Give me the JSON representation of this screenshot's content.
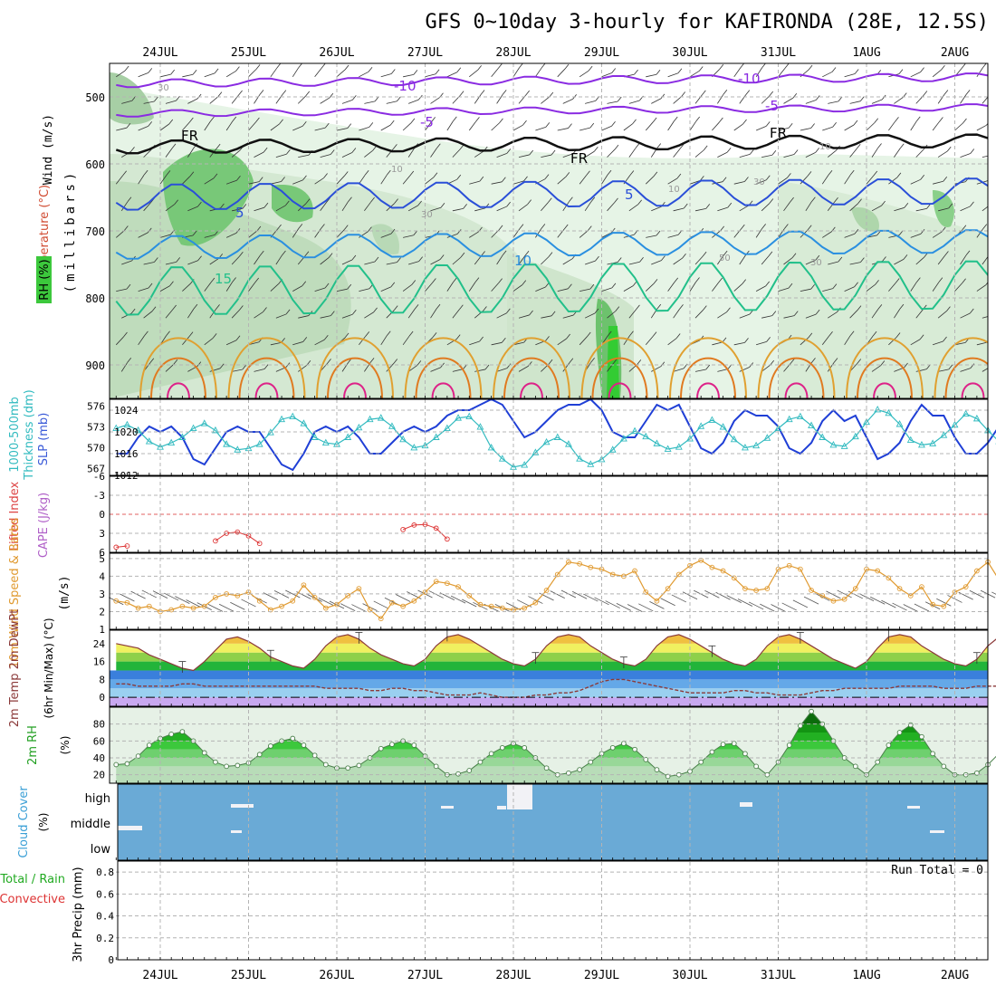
{
  "title": "GFS 0~10day 3-hourly for KAFIRONDA (28E, 12.5S)",
  "dates": [
    "24JUL",
    "25JUL",
    "26JUL",
    "27JUL",
    "28JUL",
    "29JUL",
    "30JUL",
    "31JUL",
    "1AUG",
    "2AUG"
  ],
  "run_total": "Run Total = 0",
  "colors": {
    "grid": "#b4b4b4",
    "slp": "#1f3fd6",
    "thick": "#33bbc0",
    "cape_line": "#dd3333",
    "wind": "#e09a30",
    "barb": "#555555",
    "rh_fill": "#3cc83c",
    "cloud": "#6aaad6",
    "temp_line": "#8b3a3a"
  },
  "chart_data": [
    {
      "type": "heatmap",
      "panel": "upper-air",
      "ylabel_parts": [
        "Wind (m/s)",
        "Temperature (°C)",
        "RH (%)"
      ],
      "ylabel_units": "(millibars)",
      "y_ticks": [
        500,
        600,
        700,
        800,
        900
      ],
      "ylim": [
        950,
        450
      ],
      "isotherm_labels": [
        "-10",
        "-10",
        "-5",
        "-5",
        "FR",
        "FR",
        "FR",
        "5",
        "5",
        "10",
        "15"
      ],
      "rh_labels": [
        "30",
        "10",
        "10",
        "30",
        "10",
        "30",
        "50",
        "30"
      ]
    },
    {
      "type": "line",
      "panel": "slp-thickness",
      "ylabel_left": [
        "1000-500mb",
        "Thickness (dm)"
      ],
      "ylabel_right": "SLP (mb)",
      "left_ticks": [
        "576",
        "573",
        "570",
        "567"
      ],
      "right_ticks": [
        "1024",
        "1020",
        "1016",
        "1012"
      ],
      "ylim_left": [
        566,
        577
      ],
      "ylim_right": [
        1012,
        1026
      ],
      "series": [
        {
          "values": [
            1016,
            1016,
            1019,
            1021,
            1020,
            1021,
            1019,
            1015,
            1014,
            1017,
            1020,
            1021,
            1020,
            1020,
            1017,
            1014,
            1013,
            1016,
            1020,
            1021,
            1020,
            1021,
            1019,
            1016,
            1016,
            1018,
            1020,
            1021,
            1020,
            1021,
            1023,
            1024,
            1024,
            1025,
            1026,
            1025,
            1022,
            1019,
            1020,
            1022,
            1024,
            1025,
            1025,
            1026,
            1024,
            1020,
            1019,
            1019,
            1022,
            1025,
            1024,
            1025,
            1021,
            1017,
            1016,
            1018,
            1022,
            1024,
            1023,
            1023,
            1021,
            1017,
            1016,
            1018,
            1022,
            1024,
            1022,
            1023,
            1019,
            1015,
            1016,
            1018,
            1022,
            1025,
            1023,
            1023,
            1019,
            1016,
            1016,
            1018,
            1021,
            1022
          ]
        },
        {
          "values": [
            572.8,
            573.3,
            572.5,
            570.9,
            570.1,
            570.7,
            571.5,
            572.8,
            573.5,
            572.5,
            570.5,
            569.7,
            569.9,
            570.5,
            572.2,
            574.1,
            574.5,
            573.5,
            571.5,
            570.7,
            570.5,
            571.5,
            572.9,
            574.1,
            574.3,
            573.1,
            571.2,
            570.0,
            570.3,
            571.5,
            572.8,
            574.3,
            574.5,
            573.0,
            570.0,
            568.4,
            567.2,
            567.5,
            569.3,
            570.8,
            571.5,
            570.5,
            568.4,
            567.6,
            568.3,
            569.7,
            571.3,
            572.4,
            571.6,
            570.6,
            569.8,
            570.1,
            571.3,
            573.1,
            574.0,
            573.0,
            571.2,
            570.0,
            570.3,
            571.4,
            572.8,
            574.1,
            574.5,
            573.2,
            571.5,
            570.4,
            570.2,
            571.6,
            573.7,
            575.5,
            575.0,
            573.4,
            571.1,
            570.4,
            570.6,
            571.8,
            573.3,
            574.9,
            574.2,
            572.5,
            570.9,
            571.6
          ]
        }
      ]
    },
    {
      "type": "line",
      "panel": "cape-li",
      "ylabel_left": "Lifted Index",
      "ylabel_right": "CAPE (J/kg)",
      "y_ticks": [
        "-6",
        "-3",
        "0",
        "3",
        "6"
      ],
      "ylim": [
        -6,
        6
      ],
      "series": [
        {
          "values": [
            5.2,
            5.0,
            null,
            null,
            null,
            null,
            null,
            null,
            null,
            4.2,
            3.0,
            2.8,
            3.4,
            4.6,
            null,
            null,
            null,
            null,
            null,
            null,
            null,
            null,
            null,
            null,
            null,
            null,
            2.4,
            1.7,
            1.6,
            2.2,
            3.9,
            null,
            null,
            null,
            null,
            null,
            null,
            null,
            null,
            null,
            null,
            null,
            null,
            null,
            null,
            null,
            null,
            null,
            null,
            null,
            null,
            null,
            null,
            null,
            null,
            null,
            null,
            null,
            null,
            null,
            null,
            null,
            null,
            null,
            null,
            null,
            null,
            null,
            null,
            null,
            null,
            null,
            null,
            null,
            null,
            null,
            null,
            null,
            null,
            null,
            null,
            null
          ]
        }
      ]
    },
    {
      "type": "line",
      "panel": "10m-wind",
      "ylabel": "10m Wind Speed & Barbs",
      "ylabel_units": "(m/s)",
      "y_ticks": [
        "5",
        "4",
        "3",
        "2",
        "1"
      ],
      "ylim": [
        1,
        5.3
      ],
      "series": [
        {
          "values": [
            2.6,
            2.5,
            2.2,
            2.3,
            2.0,
            2.1,
            2.3,
            2.2,
            2.3,
            2.8,
            3.0,
            2.9,
            3.1,
            2.6,
            2.1,
            2.3,
            2.6,
            3.5,
            2.8,
            2.2,
            2.4,
            2.9,
            3.3,
            2.1,
            1.6,
            2.5,
            2.3,
            2.6,
            3.1,
            3.7,
            3.6,
            3.4,
            2.9,
            2.4,
            2.3,
            2.2,
            2.1,
            2.2,
            2.5,
            3.2,
            4.1,
            4.8,
            4.7,
            4.5,
            4.4,
            4.1,
            4.0,
            4.3,
            3.1,
            2.6,
            3.3,
            4.1,
            4.6,
            4.9,
            4.5,
            4.3,
            3.9,
            3.3,
            3.2,
            3.3,
            4.4,
            4.6,
            4.4,
            3.2,
            2.9,
            2.6,
            2.7,
            3.3,
            4.4,
            4.3,
            3.9,
            3.3,
            2.9,
            3.4,
            2.4,
            2.3,
            3.1,
            3.4,
            4.3,
            4.8,
            3.8,
            3.4
          ]
        }
      ]
    },
    {
      "type": "area",
      "panel": "2m-temp",
      "ylabel": "2m Temp 2m DewPt",
      "ylabel_units": "(6hr Min/Max) (°C)",
      "y_ticks": [
        "24",
        "16",
        "8",
        "0"
      ],
      "ylim": [
        -4,
        30
      ],
      "series": [
        {
          "values": [
            24,
            23,
            22,
            19,
            17,
            15,
            13,
            12,
            16,
            21,
            26,
            27,
            25,
            22,
            18,
            16,
            14,
            13,
            17,
            23,
            27,
            28,
            26,
            22,
            19,
            17,
            15,
            14,
            17,
            23,
            27,
            28,
            26,
            23,
            20,
            17,
            15,
            14,
            17,
            23,
            27,
            28,
            27,
            23,
            20,
            17,
            15,
            14,
            17,
            23,
            27,
            28,
            26,
            23,
            20,
            17,
            15,
            14,
            17,
            23,
            27,
            28,
            26,
            23,
            20,
            17,
            15,
            13,
            16,
            22,
            27,
            28,
            27,
            23,
            20,
            17,
            15,
            14,
            17,
            23,
            27,
            28
          ]
        },
        {
          "values": [
            6,
            6,
            5,
            5,
            5,
            5,
            6,
            6,
            5,
            5,
            5,
            5,
            5,
            5,
            5,
            5,
            5,
            5,
            5,
            4,
            4,
            4,
            4,
            3,
            3,
            4,
            4,
            3,
            3,
            2,
            1,
            1,
            1,
            2,
            1,
            0,
            0,
            0,
            1,
            1,
            2,
            2,
            3,
            5,
            7,
            8,
            8,
            7,
            6,
            5,
            4,
            3,
            2,
            2,
            2,
            2,
            3,
            3,
            2,
            2,
            1,
            1,
            1,
            2,
            3,
            3,
            4,
            4,
            4,
            4,
            4,
            5,
            5,
            5,
            5,
            4,
            4,
            4,
            5,
            5,
            5,
            5
          ]
        }
      ]
    },
    {
      "type": "area",
      "panel": "2m-rh",
      "ylabel": "2m RH",
      "ylabel_units": "(%)",
      "y_ticks": [
        "80",
        "60",
        "40",
        "20"
      ],
      "ylim": [
        10,
        100
      ],
      "series": [
        {
          "values": [
            32,
            33,
            42,
            55,
            63,
            68,
            71,
            60,
            46,
            35,
            30,
            31,
            34,
            44,
            54,
            60,
            63,
            55,
            43,
            32,
            28,
            28,
            31,
            40,
            51,
            56,
            60,
            55,
            42,
            30,
            20,
            21,
            25,
            35,
            45,
            52,
            57,
            52,
            40,
            28,
            20,
            22,
            26,
            35,
            45,
            52,
            57,
            50,
            38,
            26,
            18,
            20,
            24,
            35,
            47,
            56,
            57,
            45,
            30,
            20,
            35,
            55,
            78,
            95,
            80,
            60,
            40,
            30,
            20,
            35,
            55,
            70,
            79,
            65,
            45,
            30,
            20,
            20,
            22,
            32,
            45,
            58
          ]
        }
      ]
    },
    {
      "type": "heatmap",
      "panel": "cloud-cover",
      "ylabel": "Cloud Cover",
      "ylabel_units": "(%)",
      "y_ticks": [
        "high",
        "middle",
        "low"
      ]
    },
    {
      "type": "bar",
      "panel": "precip",
      "ylabel_left": [
        "Total / Rain",
        "Convective"
      ],
      "ylabel": "3hr Precip (mm)",
      "y_ticks": [
        "0.8",
        "0.6",
        "0.4",
        "0.2",
        "0"
      ],
      "ylim": [
        0,
        0.9
      ],
      "values": []
    }
  ]
}
